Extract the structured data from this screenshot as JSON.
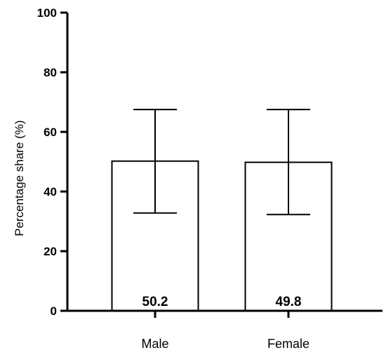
{
  "chart_data": {
    "type": "bar",
    "categories": [
      "Male",
      "Female"
    ],
    "values": [
      50.2,
      49.8
    ],
    "error_upper": [
      67.5,
      67.5
    ],
    "error_lower": [
      32.8,
      32.3
    ],
    "data_labels": [
      "50.2",
      "49.8"
    ],
    "ylabel": "Percentage share (%)",
    "xlabel": "",
    "title": "",
    "ylim": [
      0,
      100
    ],
    "yticks": [
      0,
      20,
      40,
      60,
      80,
      100
    ],
    "ytick_labels": [
      "0",
      "20",
      "40",
      "60",
      "80",
      "100"
    ],
    "grid": false,
    "legend": "none",
    "bar_fill": "#ffffff",
    "bar_stroke": "#000000"
  }
}
